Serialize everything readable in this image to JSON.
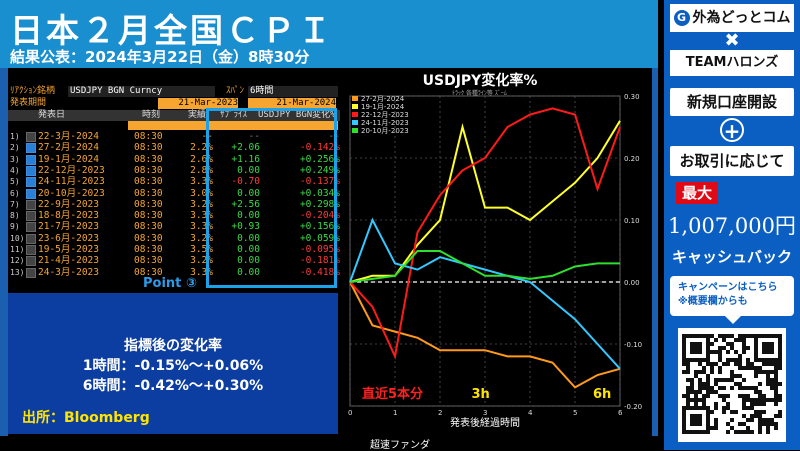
{
  "header": {
    "title": "日本２月全国ＣＰＩ",
    "subtitle": "結果公表：2024年3月22日（金）8時30分"
  },
  "terminal": {
    "security_label": "ﾘｱｸｼｮﾝ銘柄",
    "security_value": "USDJPY BGN Curncy",
    "span_label": "ｽﾊﾟﾝ",
    "span_value": "6時間",
    "period_label": "発表期間",
    "period_from": "21-Mar-2023",
    "period_to": "21-Mar-2024",
    "columns": [
      "発表日",
      "時刻",
      "実績",
      "ｻﾌﾟﾗｲｽﾞ",
      "USDJPY BGN変化%"
    ],
    "rows": [
      {
        "idx": "1)",
        "check": "off",
        "date": "22-3月-2024",
        "time": "08:30",
        "actual": "--",
        "surprise": "--",
        "change": "--",
        "surprise_cls": "grey",
        "change_cls": "grey"
      },
      {
        "idx": "2)",
        "check": "on",
        "date": "27-2月-2024",
        "time": "08:30",
        "actual": "2.2%",
        "surprise": "+2.06",
        "change": "-0.142%",
        "surprise_cls": "pos",
        "change_cls": "neg"
      },
      {
        "idx": "3)",
        "check": "on",
        "date": "19-1月-2024",
        "time": "08:30",
        "actual": "2.6%",
        "surprise": "+1.16",
        "change": "+0.256%",
        "surprise_cls": "pos",
        "change_cls": "pos"
      },
      {
        "idx": "4)",
        "check": "on",
        "date": "22-12月-2023",
        "time": "08:30",
        "actual": "2.8%",
        "surprise": "0.00",
        "change": "+0.249%",
        "surprise_cls": "pos",
        "change_cls": "pos"
      },
      {
        "idx": "5)",
        "check": "on",
        "date": "24-11月-2023",
        "time": "08:30",
        "actual": "3.3%",
        "surprise": "-0.70",
        "change": "-0.137%",
        "surprise_cls": "neg",
        "change_cls": "neg"
      },
      {
        "idx": "6)",
        "check": "on",
        "date": "20-10月-2023",
        "time": "08:30",
        "actual": "3.0%",
        "surprise": "0.00",
        "change": "+0.034%",
        "surprise_cls": "pos",
        "change_cls": "pos"
      },
      {
        "idx": "7)",
        "check": "off",
        "date": "22-9月-2023",
        "time": "08:30",
        "actual": "3.2%",
        "surprise": "+2.56",
        "change": "+0.298%",
        "surprise_cls": "pos",
        "change_cls": "pos"
      },
      {
        "idx": "8)",
        "check": "off",
        "date": "18-8月-2023",
        "time": "08:30",
        "actual": "3.3%",
        "surprise": "0.00",
        "change": "-0.204%",
        "surprise_cls": "pos",
        "change_cls": "neg"
      },
      {
        "idx": "9)",
        "check": "off",
        "date": "21-7月-2023",
        "time": "08:30",
        "actual": "3.3%",
        "surprise": "+0.93",
        "change": "+0.156%",
        "surprise_cls": "pos",
        "change_cls": "pos"
      },
      {
        "idx": "10)",
        "check": "off",
        "date": "23-6月-2023",
        "time": "08:30",
        "actual": "3.2%",
        "surprise": "0.00",
        "change": "+0.059%",
        "surprise_cls": "pos",
        "change_cls": "pos"
      },
      {
        "idx": "11)",
        "check": "off",
        "date": "19-5月-2023",
        "time": "08:30",
        "actual": "3.5%",
        "surprise": "0.00",
        "change": "-0.095%",
        "surprise_cls": "pos",
        "change_cls": "neg"
      },
      {
        "idx": "12)",
        "check": "off",
        "date": "21-4月-2023",
        "time": "08:30",
        "actual": "3.2%",
        "surprise": "0.00",
        "change": "-0.181%",
        "surprise_cls": "pos",
        "change_cls": "neg"
      },
      {
        "idx": "13)",
        "check": "off",
        "date": "24-3月-2023",
        "time": "08:30",
        "actual": "3.3%",
        "surprise": "0.00",
        "change": "-0.418%",
        "surprise_cls": "pos",
        "change_cls": "neg"
      }
    ]
  },
  "point_label": "Point ③",
  "info": {
    "heading": "指標後の変化率",
    "line1": "1時間：-0.15%～+0.06%",
    "line2": "6時間：-0.42%～+0.30%",
    "source": "出所：Bloomberg"
  },
  "footer_text": "超速ファンダ",
  "chart_data": {
    "type": "line",
    "title": "USDJPY変化率%",
    "toolbar": "ﾄﾗｯｸ  各種ﾗｲﾝ等  ｽﾞｰﾑ",
    "xlabel": "発表後経過時間",
    "x": [
      0,
      0.5,
      1,
      1.5,
      2,
      2.5,
      3,
      3.5,
      4,
      4.5,
      5,
      5.5,
      6
    ],
    "xticks": [
      0,
      1,
      2,
      3,
      4,
      5,
      6
    ],
    "ylim": [
      -0.2,
      0.3
    ],
    "yticks": [
      "0.30",
      "0.20",
      "0.10",
      "0.00",
      "-0.10",
      "-0.20"
    ],
    "ytick_values": [
      0.3,
      0.2,
      0.1,
      0.0,
      -0.1,
      -0.2
    ],
    "series": [
      {
        "name": "27-2月-2024",
        "color": "#ff9a1a",
        "values": [
          0.0,
          -0.07,
          -0.08,
          -0.09,
          -0.11,
          -0.11,
          -0.11,
          -0.12,
          -0.12,
          -0.13,
          -0.17,
          -0.15,
          -0.14
        ]
      },
      {
        "name": "19-1月-2024",
        "color": "#ffff2a",
        "values": [
          0.0,
          0.01,
          0.01,
          0.06,
          0.1,
          0.25,
          0.12,
          0.12,
          0.1,
          0.13,
          0.16,
          0.2,
          0.26
        ]
      },
      {
        "name": "22-12月-2023",
        "color": "#ff1a1a",
        "values": [
          0.0,
          -0.04,
          -0.12,
          0.08,
          0.14,
          0.18,
          0.2,
          0.25,
          0.27,
          0.28,
          0.27,
          0.15,
          0.25
        ]
      },
      {
        "name": "24-11月-2023",
        "color": "#33c8ff",
        "values": [
          0.0,
          0.1,
          0.03,
          0.02,
          0.04,
          0.03,
          0.02,
          0.01,
          0.0,
          -0.03,
          -0.06,
          -0.1,
          -0.14
        ]
      },
      {
        "name": "20-10月-2023",
        "color": "#2ee02e",
        "values": [
          0.0,
          0.005,
          0.01,
          0.05,
          0.05,
          0.03,
          0.01,
          0.01,
          0.005,
          0.01,
          0.025,
          0.03,
          0.03
        ]
      }
    ],
    "annotations": [
      {
        "text": "直近5本分",
        "color": "#ff2020"
      },
      {
        "text": "3h",
        "color": "#ffe400"
      },
      {
        "text": "6h",
        "color": "#ffe400"
      }
    ]
  },
  "sidebar": {
    "logo1": "外為どっとコム",
    "logo1_mark": "G",
    "cross": "✖",
    "logo2": "TEAMハロンズ",
    "btn_open": "新規口座開設",
    "plus": "+",
    "btn_trade": "お取引に応じて",
    "max_label": "最大",
    "amount": "1,007,000円",
    "cashback": "キャッシュバック",
    "note_line1": "キャンペーンはこちら",
    "note_line2": "※概要欄からも"
  }
}
